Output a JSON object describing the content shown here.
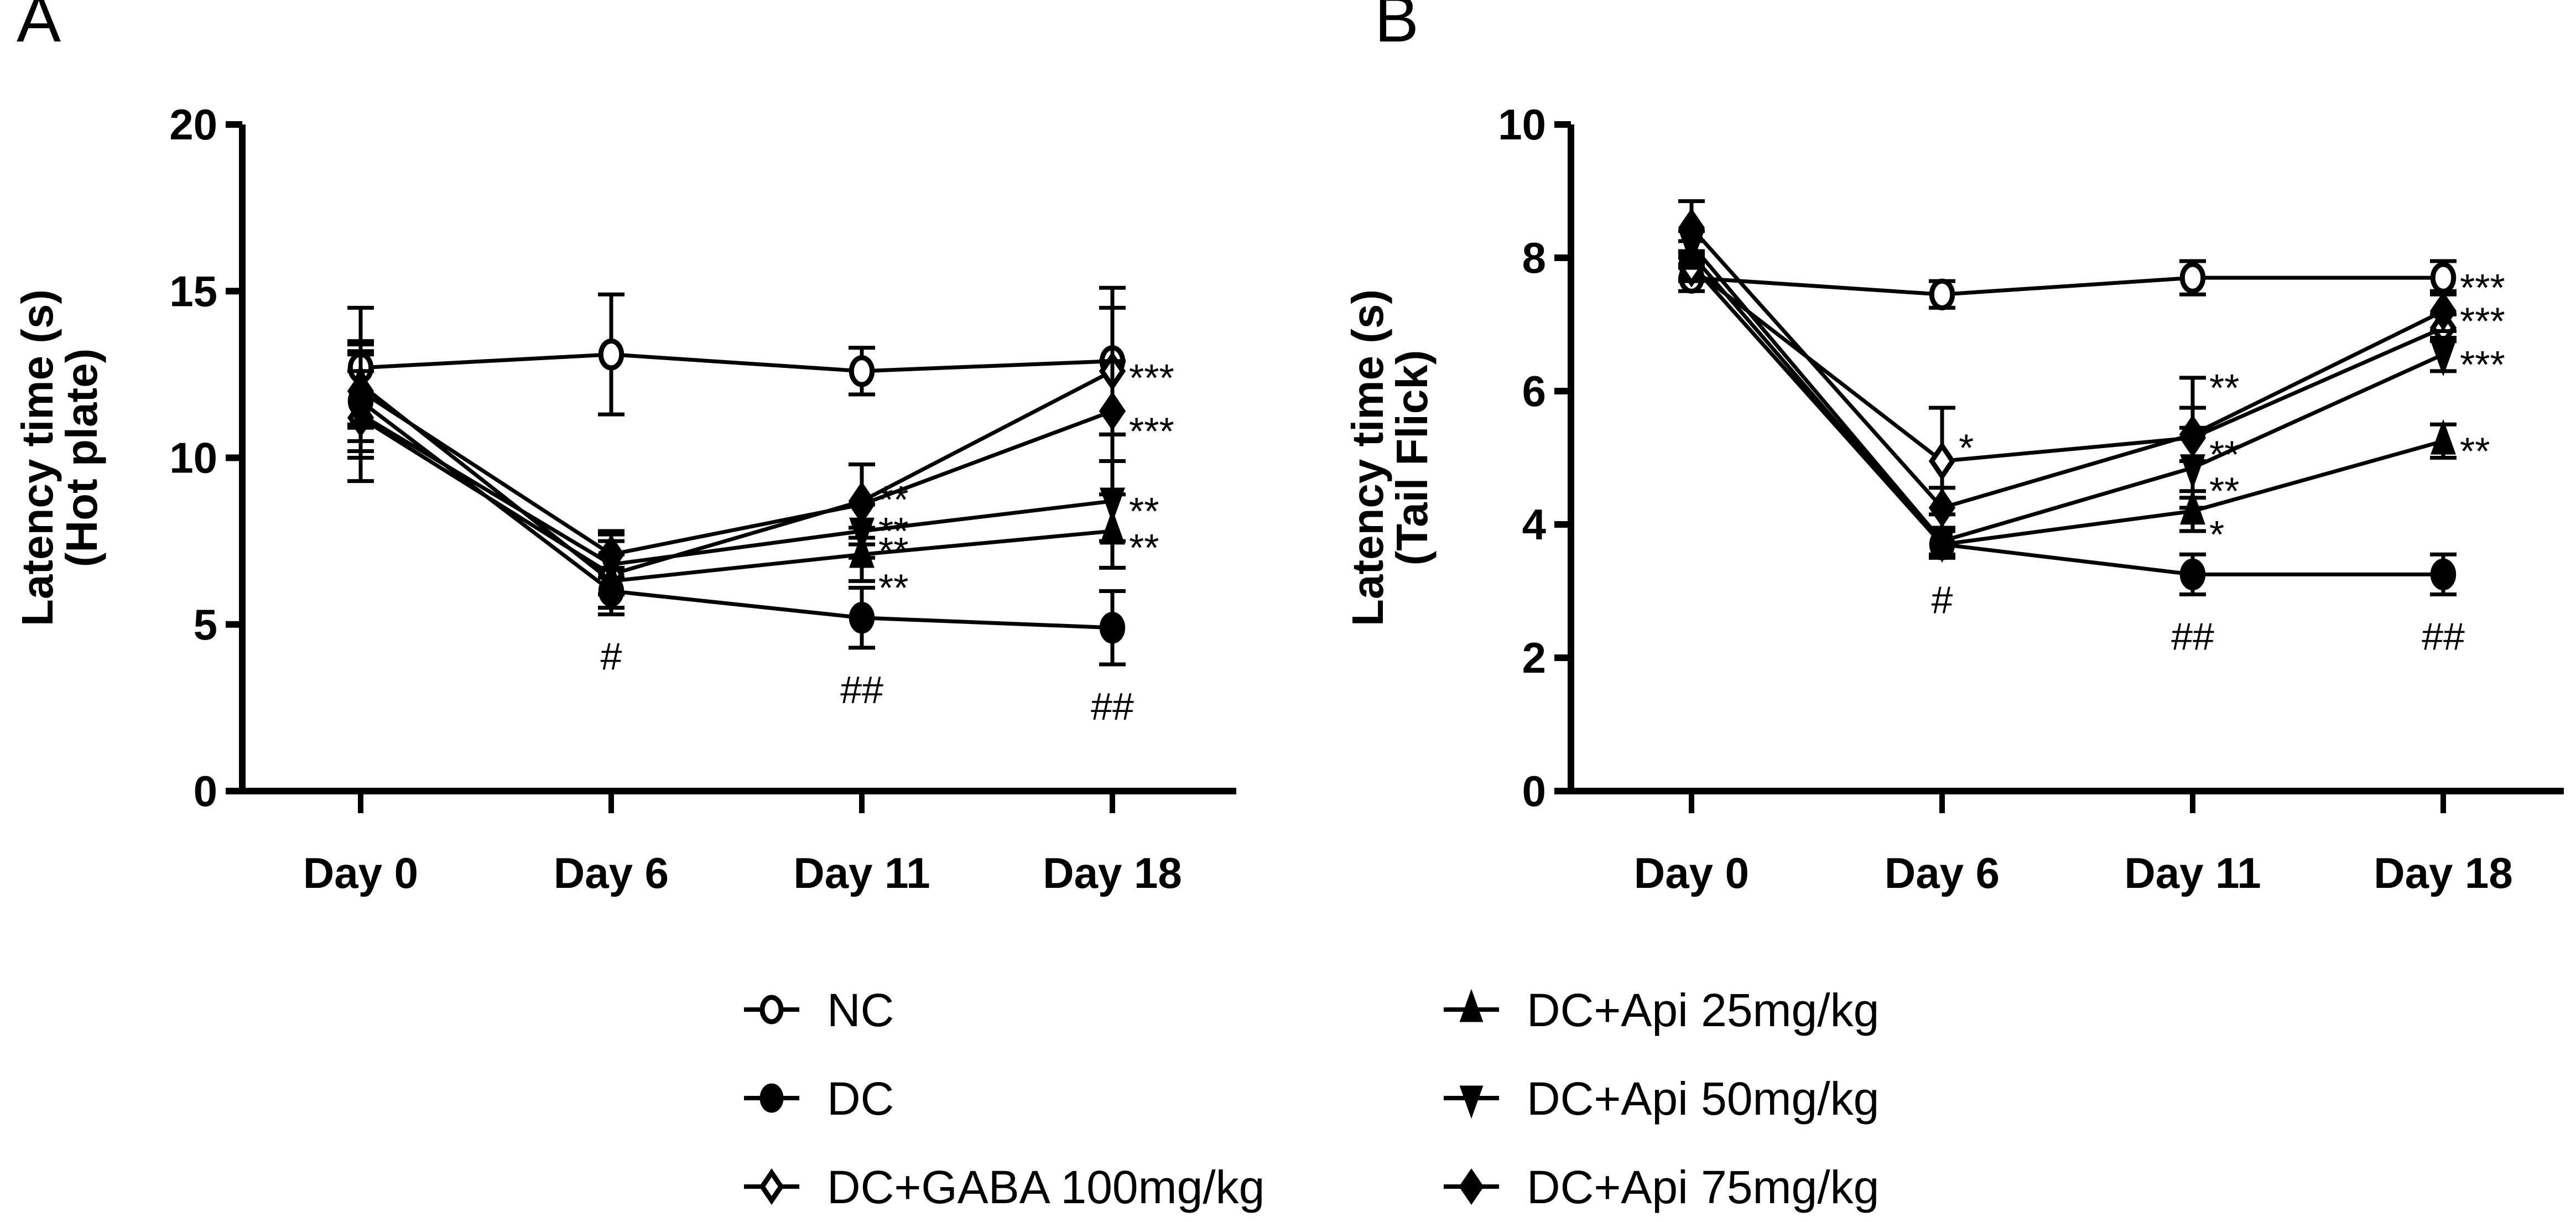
{
  "chart_data": [
    {
      "panel": "A",
      "type": "line",
      "title": "",
      "xlabel": "",
      "ylabel": "Latency time (s)",
      "ylabel2": "(Hot plate)",
      "categories": [
        "Day 0",
        "Day 6",
        "Day 11",
        "Day 18"
      ],
      "ylim": [
        0,
        20
      ],
      "yticks": [
        "0",
        "5",
        "10",
        "15",
        "20"
      ],
      "ytick_values": [
        0,
        5,
        10,
        15,
        20
      ],
      "grid": false,
      "series": [
        {
          "name": "NC",
          "marker": "circle-open",
          "values": [
            12.7,
            13.1,
            12.6,
            12.9
          ],
          "errors": [
            1.8,
            1.8,
            0.7,
            2.2
          ]
        },
        {
          "name": "DC",
          "marker": "circle-filled",
          "values": [
            11.7,
            6.0,
            5.2,
            4.9
          ],
          "errors": [
            1.5,
            0.7,
            0.9,
            1.1
          ]
        },
        {
          "name": "DC+GABA 100mg/kg",
          "marker": "diamond-open",
          "values": [
            11.2,
            6.5,
            8.7,
            12.6
          ],
          "errors": [
            1.9,
            1.0,
            1.1,
            1.9
          ]
        },
        {
          "name": "DC+Api 25mg/kg",
          "marker": "triangle-up",
          "values": [
            12.2,
            6.3,
            7.1,
            7.8
          ],
          "errors": [
            1.2,
            0.8,
            0.8,
            1.1
          ]
        },
        {
          "name": "DC+Api 50mg/kg",
          "marker": "triangle-down",
          "values": [
            11.3,
            6.8,
            7.8,
            8.7
          ],
          "errors": [
            1.3,
            0.9,
            0.8,
            1.2
          ]
        },
        {
          "name": "DC+Api 75mg/kg",
          "marker": "diamond-filled",
          "values": [
            12.0,
            7.1,
            8.6,
            11.4
          ],
          "errors": [
            1.5,
            0.7,
            1.2,
            1.5
          ]
        }
      ],
      "annotations": [
        {
          "x": "Day 6",
          "text": "#",
          "near": "DC",
          "position": "below"
        },
        {
          "x": "Day 11",
          "text": "##",
          "near": "DC",
          "position": "below"
        },
        {
          "x": "Day 18",
          "text": "##",
          "near": "DC",
          "position": "below"
        },
        {
          "x": "Day 11",
          "text": "**",
          "near": "DC+GABA 100mg/kg",
          "y": 8.85
        },
        {
          "x": "Day 11",
          "text": "**",
          "near": "DC+Api 75mg/kg",
          "y": 7.9
        },
        {
          "x": "Day 11",
          "text": "**",
          "near": "DC+Api 50mg/kg",
          "y": 7.3
        },
        {
          "x": "Day 11",
          "text": "**",
          "near": "DC+Api 25mg/kg",
          "y": 6.2
        },
        {
          "x": "Day 18",
          "text": "***",
          "near": "NC",
          "y": 12.5
        },
        {
          "x": "Day 18",
          "text": "***",
          "near": "DC+Api 75mg/kg",
          "y": 10.9
        },
        {
          "x": "Day 18",
          "text": "**",
          "near": "DC+Api 50mg/kg",
          "y": 8.5
        },
        {
          "x": "Day 18",
          "text": "**",
          "near": "DC+Api 25mg/kg",
          "y": 7.4
        }
      ]
    },
    {
      "panel": "B",
      "type": "line",
      "title": "",
      "xlabel": "",
      "ylabel": "Latency time (s)",
      "ylabel2": "(Tail Flick)",
      "categories": [
        "Day 0",
        "Day 6",
        "Day 11",
        "Day 18"
      ],
      "ylim": [
        0,
        10
      ],
      "yticks": [
        "0",
        "2",
        "4",
        "6",
        "8",
        "10"
      ],
      "ytick_values": [
        0,
        2,
        4,
        6,
        8,
        10
      ],
      "grid": false,
      "series": [
        {
          "name": "NC",
          "marker": "circle-open",
          "values": [
            7.7,
            7.45,
            7.7,
            7.7
          ],
          "errors": [
            0.2,
            0.2,
            0.25,
            0.25
          ]
        },
        {
          "name": "DC",
          "marker": "circle-filled",
          "values": [
            7.9,
            3.7,
            3.25,
            3.25
          ],
          "errors": [
            0.2,
            0.2,
            0.3,
            0.3
          ]
        },
        {
          "name": "DC+GABA 100mg/kg",
          "marker": "diamond-open",
          "values": [
            7.85,
            4.95,
            5.3,
            6.95
          ],
          "errors": [
            0.2,
            0.8,
            0.9,
            0.2
          ]
        },
        {
          "name": "DC+Api 25mg/kg",
          "marker": "triangle-up",
          "values": [
            8.05,
            3.7,
            4.2,
            5.25
          ],
          "errors": [
            0.2,
            0.2,
            0.3,
            0.25
          ]
        },
        {
          "name": "DC+Api 50mg/kg",
          "marker": "triangle-down",
          "values": [
            8.2,
            3.75,
            4.85,
            6.55
          ],
          "errors": [
            0.2,
            0.2,
            0.6,
            0.25
          ]
        },
        {
          "name": "DC+Api 75mg/kg",
          "marker": "diamond-filled",
          "values": [
            8.45,
            4.25,
            5.35,
            7.2
          ],
          "errors": [
            0.4,
            0.3,
            0.4,
            0.3
          ]
        }
      ],
      "annotations": [
        {
          "x": "Day 6",
          "text": "#",
          "near": "DC",
          "position": "below"
        },
        {
          "x": "Day 11",
          "text": "##",
          "near": "DC",
          "position": "below"
        },
        {
          "x": "Day 18",
          "text": "##",
          "near": "DC",
          "position": "below"
        },
        {
          "x": "Day 6",
          "text": "*",
          "near": "DC+GABA 100mg/kg",
          "y": 5.2
        },
        {
          "x": "Day 11",
          "text": "**",
          "near": "DC+GABA 100mg/kg",
          "y": 6.1
        },
        {
          "x": "Day 11",
          "text": "**",
          "near": "DC+Api 75mg/kg",
          "y": 5.1
        },
        {
          "x": "Day 11",
          "text": "**",
          "near": "DC+Api 50mg/kg",
          "y": 4.55
        },
        {
          "x": "Day 11",
          "text": "*",
          "near": "DC+Api 25mg/kg",
          "y": 3.9
        },
        {
          "x": "Day 18",
          "text": "***",
          "near": "NC",
          "y": 7.6
        },
        {
          "x": "Day 18",
          "text": "***",
          "near": "DC+Api 75mg/kg",
          "y": 7.1
        },
        {
          "x": "Day 18",
          "text": "***",
          "near": "DC+Api 50mg/kg",
          "y": 6.45
        },
        {
          "x": "Day 18",
          "text": "**",
          "near": "DC+Api 25mg/kg",
          "y": 5.15
        }
      ]
    }
  ],
  "legend": {
    "placement": "bottom-center",
    "entries": [
      {
        "label": "NC",
        "marker": "circle-open"
      },
      {
        "label": "DC",
        "marker": "circle-filled"
      },
      {
        "label": "DC+GABA 100mg/kg",
        "marker": "diamond-open"
      },
      {
        "label": "DC+Api 25mg/kg",
        "marker": "triangle-up"
      },
      {
        "label": "DC+Api 50mg/kg",
        "marker": "triangle-down"
      },
      {
        "label": "DC+Api 75mg/kg",
        "marker": "diamond-filled"
      }
    ]
  },
  "colors": {
    "ink": "#000000",
    "background": "#ffffff"
  }
}
